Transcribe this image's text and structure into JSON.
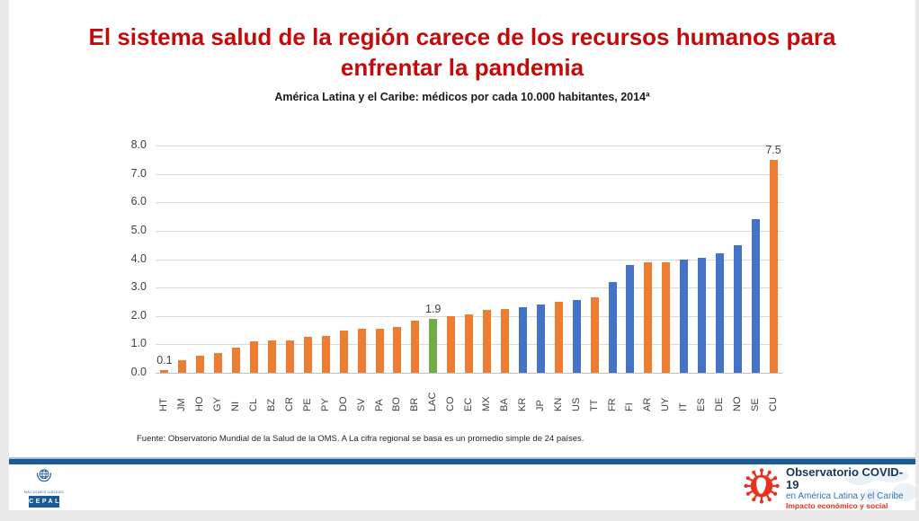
{
  "slide": {
    "title": "El sistema salud de la región carece de los recursos humanos para enfrentar la pandemia",
    "footnote": "Fuente: Observatorio Mundial de la Salud de la OMS. A La cifra regional se basa es un promedio simple de 24 países."
  },
  "chart_data": {
    "type": "bar",
    "title": "América Latina y el Caribe: médicos por cada 10.000 habitantes, 2014ª",
    "categories": [
      "HT",
      "JM",
      "HO",
      "GY",
      "NI",
      "CL",
      "BZ",
      "CR",
      "PE",
      "PY",
      "DO",
      "SV",
      "PA",
      "BO",
      "BR",
      "LAC",
      "CO",
      "EC",
      "MX",
      "BA",
      "KR",
      "JP",
      "KN",
      "US",
      "TT",
      "FR",
      "FI",
      "AR",
      "UY",
      "IT",
      "ES",
      "DE",
      "NO",
      "SE",
      "CU"
    ],
    "values": [
      0.1,
      0.45,
      0.6,
      0.7,
      0.9,
      1.1,
      1.15,
      1.15,
      1.25,
      1.3,
      1.5,
      1.55,
      1.55,
      1.6,
      1.85,
      1.9,
      2.0,
      2.05,
      2.2,
      2.25,
      2.3,
      2.4,
      2.5,
      2.55,
      2.65,
      3.2,
      3.8,
      3.9,
      3.9,
      4.0,
      4.05,
      4.2,
      4.5,
      5.4,
      7.5
    ],
    "color_key": [
      "orange",
      "orange",
      "orange",
      "orange",
      "orange",
      "orange",
      "orange",
      "orange",
      "orange",
      "orange",
      "orange",
      "orange",
      "orange",
      "orange",
      "orange",
      "green",
      "orange",
      "orange",
      "orange",
      "orange",
      "blue",
      "blue",
      "orange",
      "blue",
      "orange",
      "blue",
      "blue",
      "orange",
      "orange",
      "blue",
      "blue",
      "blue",
      "blue",
      "blue",
      "orange"
    ],
    "palette": {
      "orange": "#ED7D31",
      "blue": "#4472C4",
      "green": "#70AD47"
    },
    "data_labels": [
      {
        "category": "HT",
        "text": "0.1"
      },
      {
        "category": "LAC",
        "text": "1.9"
      },
      {
        "category": "CU",
        "text": "7.5"
      }
    ],
    "ylim": [
      0,
      8
    ],
    "ytick_labels": [
      "0.0",
      "1.0",
      "2.0",
      "3.0",
      "4.0",
      "5.0",
      "6.0",
      "7.0",
      "8.0"
    ],
    "grid": true,
    "xlabel": "",
    "ylabel": "",
    "legend": "none"
  },
  "footer": {
    "un_caption": "NACIONES UNIDAS",
    "cepal_label": "CEPAL",
    "observatory": {
      "line1": "Observatorio COVID-19",
      "line2": "en América Latina y el Caribe",
      "line3": "Impacto económico y social"
    }
  }
}
